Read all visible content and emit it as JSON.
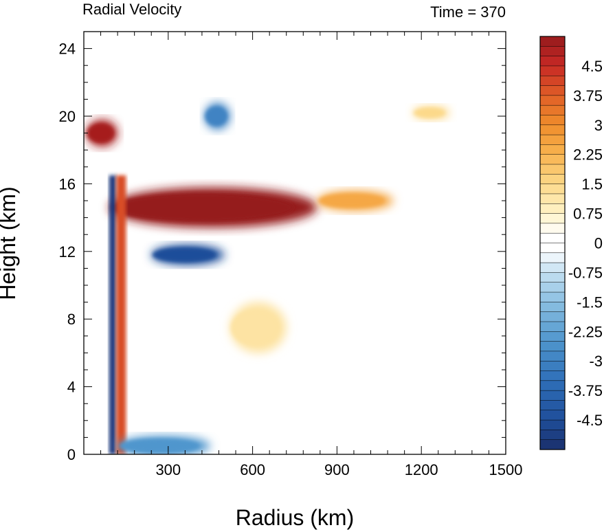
{
  "chart_data": {
    "type": "heatmap",
    "title": "Radial Velocity",
    "subtitle": "Time = 370",
    "xlabel": "Radius (km)",
    "ylabel": "Height (km)",
    "xlim": [
      0,
      1500
    ],
    "ylim": [
      0,
      25
    ],
    "x_ticks": [
      300,
      600,
      900,
      1200,
      1500
    ],
    "y_ticks": [
      0,
      4,
      8,
      12,
      16,
      20,
      24
    ],
    "colorbar": {
      "range": [
        -5.25,
        5.25
      ],
      "step": 0.25,
      "tick_labels": [
        "4.5",
        "3.75",
        "3",
        "2.25",
        "1.5",
        "0.75",
        "0",
        "-0.75",
        "-1.5",
        "-2.25",
        "-3",
        "-3.75",
        "-4.5"
      ],
      "tick_values": [
        4.5,
        3.75,
        3,
        2.25,
        1.5,
        0.75,
        0,
        -0.75,
        -1.5,
        -2.25,
        -3,
        -3.75,
        -4.5
      ],
      "color_stops": [
        [
          -5.25,
          "#1a2f6b"
        ],
        [
          -4.5,
          "#1f4e9a"
        ],
        [
          -3.5,
          "#2f6fb8"
        ],
        [
          -2.5,
          "#4f96cd"
        ],
        [
          -1.5,
          "#8cc0e2"
        ],
        [
          -0.75,
          "#c4e0f2"
        ],
        [
          -0.2,
          "#ffffff"
        ],
        [
          0.2,
          "#ffffff"
        ],
        [
          0.75,
          "#fff3c8"
        ],
        [
          1.5,
          "#fcd98a"
        ],
        [
          2.25,
          "#f8b450"
        ],
        [
          3,
          "#f08e2c"
        ],
        [
          3.75,
          "#e05f27"
        ],
        [
          4.5,
          "#c82a25"
        ],
        [
          5.25,
          "#951a1c"
        ]
      ]
    },
    "features": [
      {
        "kind": "outflow-jet",
        "r_start": 90,
        "r_end": 830,
        "z_center": 14.6,
        "z_halfwidth": 1.2,
        "value": 6
      },
      {
        "kind": "outflow-jet-tail",
        "r_start": 830,
        "r_end": 1100,
        "z_center": 15.0,
        "z_halfwidth": 0.6,
        "value": 2.5
      },
      {
        "kind": "inflow-below-jet",
        "r_start": 240,
        "r_end": 500,
        "z_center": 11.8,
        "z_halfwidth": 0.6,
        "value": -4.5
      },
      {
        "kind": "eyewall-inflow-column",
        "r_start": 90,
        "r_end": 115,
        "z_bottom": 0,
        "z_top": 16.5,
        "value": -5
      },
      {
        "kind": "eyewall-outflow-column",
        "r_start": 115,
        "r_end": 150,
        "z_bottom": 0,
        "z_top": 16.5,
        "value": 4
      },
      {
        "kind": "upper-outflow",
        "r_start": 10,
        "r_end": 120,
        "z_center": 19,
        "z_halfwidth": 0.8,
        "value": 5
      },
      {
        "kind": "upper-inflow",
        "r_start": 430,
        "r_end": 520,
        "z_center": 20,
        "z_halfwidth": 0.8,
        "value": -3
      },
      {
        "kind": "upper-outflow-far",
        "r_start": 1170,
        "r_end": 1300,
        "z_center": 20.2,
        "z_halfwidth": 0.4,
        "value": 1.5
      },
      {
        "kind": "midlevel-outflow",
        "r_start": 520,
        "r_end": 720,
        "z_center": 7.5,
        "z_halfwidth": 1.5,
        "value": 1.2
      },
      {
        "kind": "boundary-layer-inflow",
        "r_start": 120,
        "r_end": 450,
        "z_center": 0.5,
        "z_halfwidth": 0.6,
        "value": -2.5
      }
    ]
  }
}
